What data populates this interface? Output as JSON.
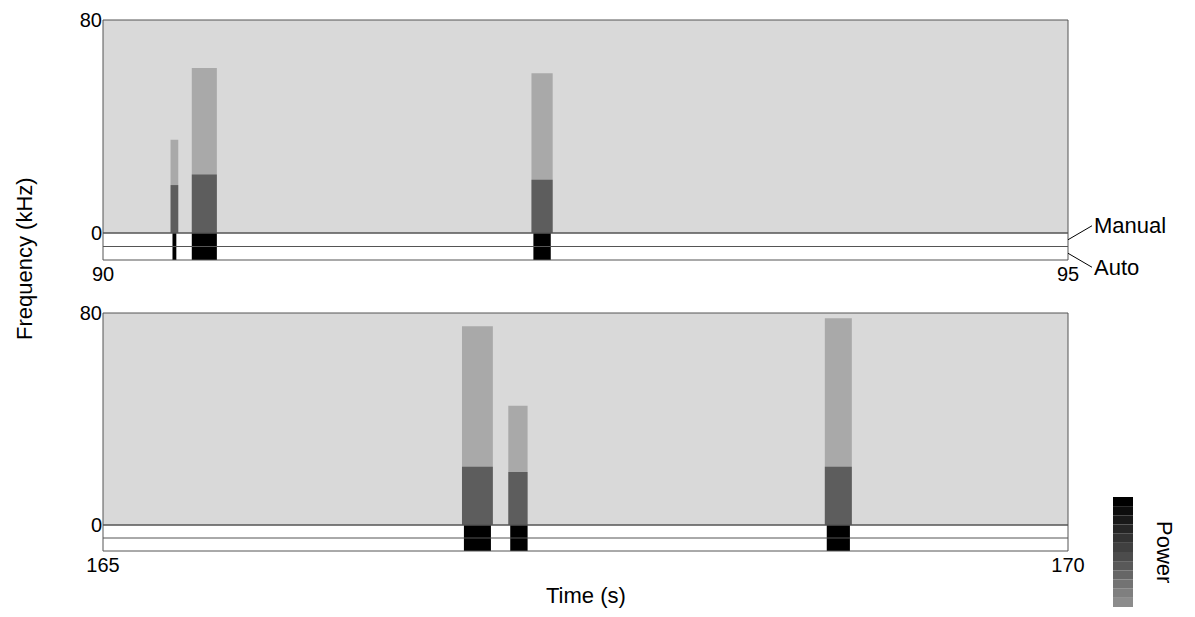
{
  "chart_data": {
    "type": "spectrogram",
    "x_title": "Time (s)",
    "y_title": "Frequency (kHz)",
    "row_labels": [
      "Manual",
      "Auto"
    ],
    "colorbar_title": "Power",
    "panels": [
      {
        "xlim": [
          90,
          95
        ],
        "xticks": [
          90,
          95
        ],
        "ylim": [
          0,
          80
        ],
        "yticks": [
          0,
          80
        ],
        "calls": [
          {
            "start": 90.35,
            "end": 90.39,
            "fmax": 35,
            "harmonic_top": 18
          },
          {
            "start": 90.46,
            "end": 90.59,
            "fmax": 62,
            "harmonic_top": 22
          },
          {
            "start": 92.22,
            "end": 92.33,
            "fmax": 60,
            "harmonic_top": 20
          }
        ],
        "series": [
          {
            "name": "Manual",
            "segments": [
              [
                90.36,
                90.38
              ],
              [
                90.46,
                90.59
              ],
              [
                92.23,
                92.32
              ]
            ]
          },
          {
            "name": "Auto",
            "segments": [
              [
                90.36,
                90.38
              ],
              [
                90.46,
                90.59
              ],
              [
                92.23,
                92.32
              ]
            ]
          }
        ]
      },
      {
        "xlim": [
          165,
          170
        ],
        "xticks": [
          165,
          170
        ],
        "ylim": [
          0,
          80
        ],
        "yticks": [
          0,
          80
        ],
        "calls": [
          {
            "start": 166.86,
            "end": 167.02,
            "fmax": 75,
            "harmonic_top": 22
          },
          {
            "start": 167.1,
            "end": 167.2,
            "fmax": 45,
            "harmonic_top": 20
          },
          {
            "start": 168.74,
            "end": 168.88,
            "fmax": 78,
            "harmonic_top": 22
          }
        ],
        "series": [
          {
            "name": "Manual",
            "segments": [
              [
                166.87,
                167.01
              ],
              [
                167.11,
                167.2
              ],
              [
                168.75,
                168.87
              ]
            ]
          },
          {
            "name": "Auto",
            "segments": [
              [
                166.87,
                167.01
              ],
              [
                167.11,
                167.2
              ],
              [
                168.75,
                168.87
              ]
            ]
          }
        ]
      }
    ]
  }
}
